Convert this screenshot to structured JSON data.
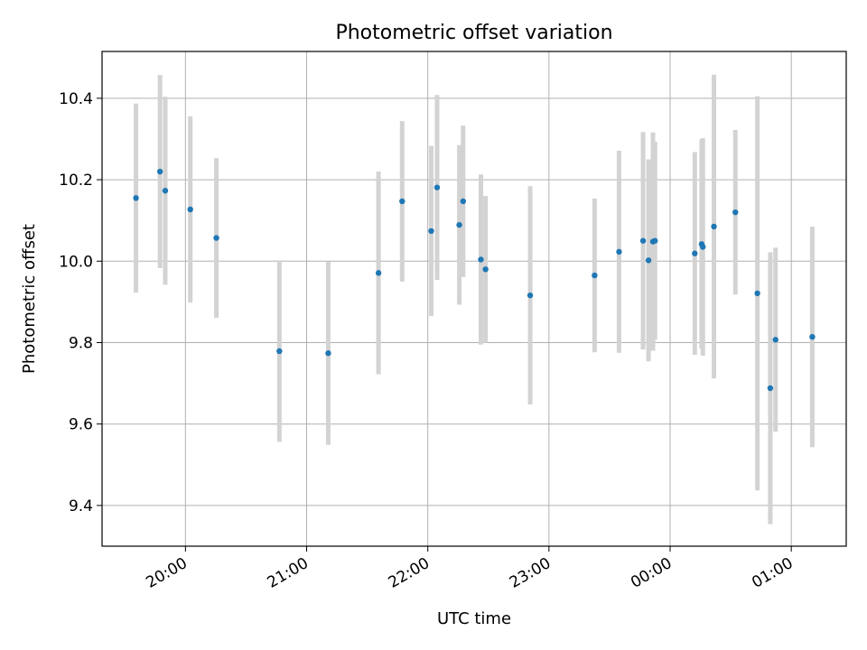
{
  "chart_data": {
    "type": "scatter",
    "title": "Photometric offset variation",
    "xlabel": "UTC time",
    "ylabel": "Photometric offset",
    "x_tick_labels": [
      "20:00",
      "21:00",
      "22:00",
      "23:00",
      "00:00",
      "01:00"
    ],
    "x_tick_values": [
      0,
      60,
      120,
      180,
      240,
      300
    ],
    "y_tick_labels": [
      "9.4",
      "9.6",
      "9.8",
      "10.0",
      "10.2",
      "10.4"
    ],
    "y_tick_values": [
      9.4,
      9.6,
      9.8,
      10.0,
      10.2,
      10.4
    ],
    "xlim": [
      -41.3,
      327.2
    ],
    "ylim": [
      9.3,
      10.515
    ],
    "grid": true,
    "colors": {
      "point": "#1f77b4",
      "errorbar": "#d3d3d3",
      "grid": "#b0b0b0"
    },
    "points": [
      {
        "t": -24.5,
        "y": 10.155,
        "err": 0.232
      },
      {
        "t": -12.6,
        "y": 10.22,
        "err": 0.237
      },
      {
        "t": -10.0,
        "y": 10.173,
        "err": 0.231
      },
      {
        "t": 2.4,
        "y": 10.127,
        "err": 0.229
      },
      {
        "t": 15.3,
        "y": 10.057,
        "err": 0.196
      },
      {
        "t": 46.5,
        "y": 9.779,
        "err": 0.223
      },
      {
        "t": 70.7,
        "y": 9.774,
        "err": 0.225
      },
      {
        "t": 95.6,
        "y": 9.971,
        "err": 0.249
      },
      {
        "t": 107.3,
        "y": 10.147,
        "err": 0.197
      },
      {
        "t": 121.7,
        "y": 10.074,
        "err": 0.209
      },
      {
        "t": 124.6,
        "y": 10.181,
        "err": 0.227
      },
      {
        "t": 135.6,
        "y": 10.089,
        "err": 0.196
      },
      {
        "t": 137.5,
        "y": 10.147,
        "err": 0.186
      },
      {
        "t": 146.3,
        "y": 10.004,
        "err": 0.209
      },
      {
        "t": 148.6,
        "y": 9.98,
        "err": 0.18
      },
      {
        "t": 170.7,
        "y": 9.916,
        "err": 0.268
      },
      {
        "t": 202.6,
        "y": 9.965,
        "err": 0.189
      },
      {
        "t": 214.7,
        "y": 10.023,
        "err": 0.248
      },
      {
        "t": 226.6,
        "y": 10.05,
        "err": 0.267
      },
      {
        "t": 229.3,
        "y": 10.002,
        "err": 0.248
      },
      {
        "t": 231.5,
        "y": 10.048,
        "err": 0.268
      },
      {
        "t": 232.5,
        "y": 10.05,
        "err": 0.243
      },
      {
        "t": 252.2,
        "y": 10.019,
        "err": 0.249
      },
      {
        "t": 255.6,
        "y": 10.042,
        "err": 0.257
      },
      {
        "t": 256.2,
        "y": 10.035,
        "err": 0.267
      },
      {
        "t": 261.7,
        "y": 10.085,
        "err": 0.373
      },
      {
        "t": 272.3,
        "y": 10.12,
        "err": 0.202
      },
      {
        "t": 283.2,
        "y": 9.921,
        "err": 0.484
      },
      {
        "t": 289.6,
        "y": 9.688,
        "err": 0.334
      },
      {
        "t": 292.2,
        "y": 9.807,
        "err": 0.226
      },
      {
        "t": 310.4,
        "y": 9.814,
        "err": 0.271
      }
    ]
  }
}
